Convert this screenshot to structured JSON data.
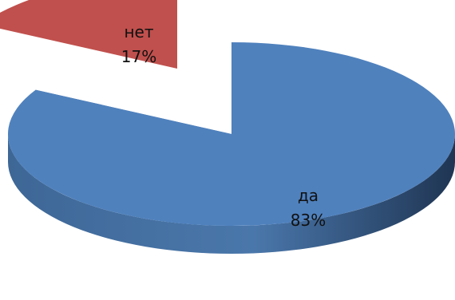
{
  "chart_data": {
    "type": "pie",
    "style": "3d-exploded",
    "title": "",
    "legend": "none",
    "slices": [
      {
        "label": "да",
        "value": 83,
        "pct_text": "83%",
        "color": "#4F81BD",
        "side_color": "#3A628F",
        "exploded": false
      },
      {
        "label": "нет",
        "value": 17,
        "pct_text": "17%",
        "color": "#C0504D",
        "side_color": "#632120",
        "exploded": true
      }
    ]
  }
}
